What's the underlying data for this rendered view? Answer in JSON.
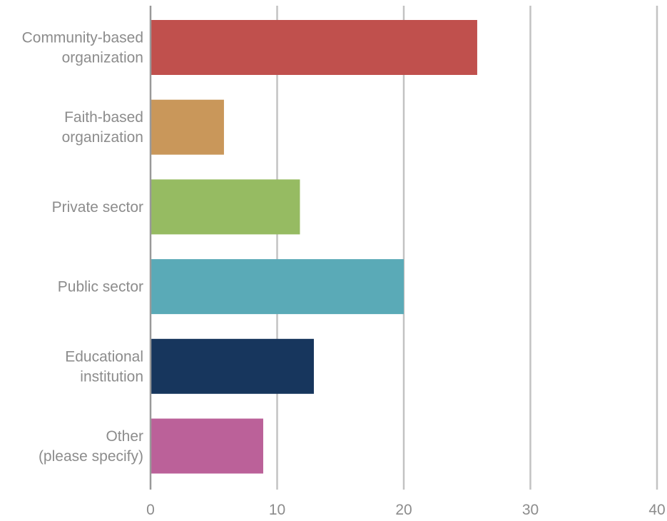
{
  "chart_data": {
    "type": "bar",
    "orientation": "horizontal",
    "title": "",
    "xlabel": "",
    "ylabel": "",
    "categories": [
      "Community-based\norganization",
      "Faith-based\norganization",
      "Private sector",
      "Public sector",
      "Educational\ninstitution",
      "Other\n(please specify)"
    ],
    "values": [
      25.8,
      5.8,
      11.8,
      20.0,
      12.9,
      8.9
    ],
    "colors": [
      "#c0504d",
      "#c9975a",
      "#96bb62",
      "#5aaab7",
      "#17365d",
      "#bb6199"
    ],
    "xlim": [
      0,
      40
    ],
    "xticks": [
      0,
      10,
      20,
      30,
      40
    ],
    "grid": "vertical",
    "legend": "none"
  }
}
